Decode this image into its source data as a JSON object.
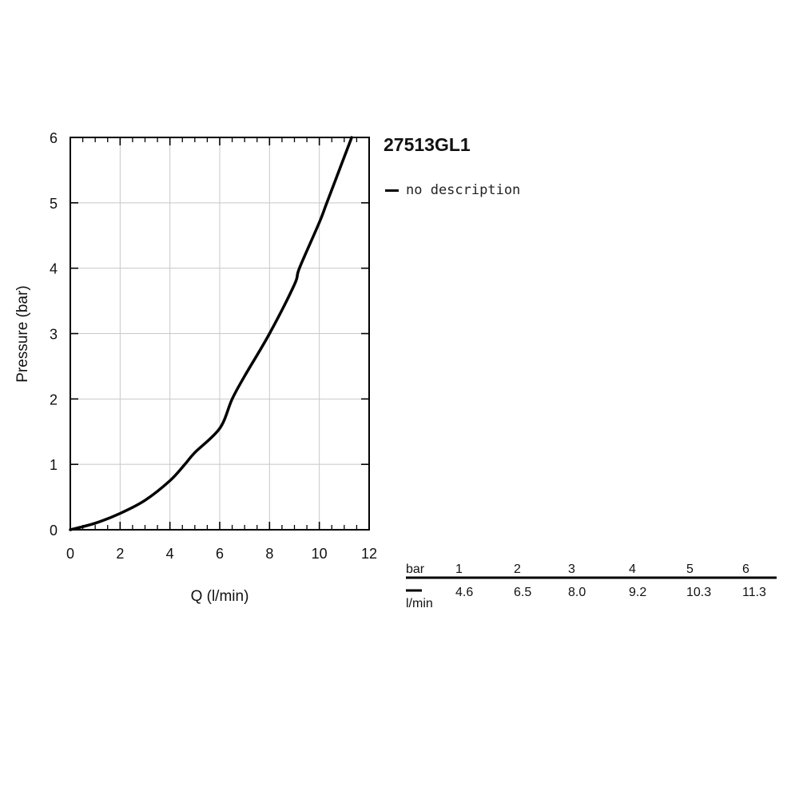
{
  "chart_data": {
    "type": "line",
    "title": "27513GL1",
    "xlabel": "Q (l/min)",
    "ylabel": "Pressure (bar)",
    "xlim": [
      0,
      12
    ],
    "ylim": [
      0,
      6
    ],
    "x_ticks": [
      "0",
      "2",
      "4",
      "6",
      "8",
      "10",
      "12"
    ],
    "y_ticks": [
      "0",
      "1",
      "2",
      "3",
      "4",
      "5",
      "6"
    ],
    "grid": true,
    "legend": "top-right",
    "series": [
      {
        "name": "no description",
        "color": "#000000",
        "points": [
          [
            0,
            0
          ],
          [
            1,
            0.1
          ],
          [
            2,
            0.25
          ],
          [
            3,
            0.45
          ],
          [
            4,
            0.75
          ],
          [
            4.6,
            1.0
          ],
          [
            5,
            1.18
          ],
          [
            6,
            1.55
          ],
          [
            6.5,
            2.0
          ],
          [
            7,
            2.35
          ],
          [
            8,
            3.0
          ],
          [
            9,
            3.75
          ],
          [
            9.2,
            4.0
          ],
          [
            10,
            4.7
          ],
          [
            10.3,
            5.0
          ],
          [
            11,
            5.7
          ],
          [
            11.3,
            6.0
          ]
        ]
      }
    ]
  },
  "table": {
    "header_label": "bar",
    "row_label": "l/min",
    "bar_values": [
      "1",
      "2",
      "3",
      "4",
      "5",
      "6"
    ],
    "flow_values": [
      "4.6",
      "6.5",
      "8.0",
      "9.2",
      "10.3",
      "11.3"
    ]
  }
}
